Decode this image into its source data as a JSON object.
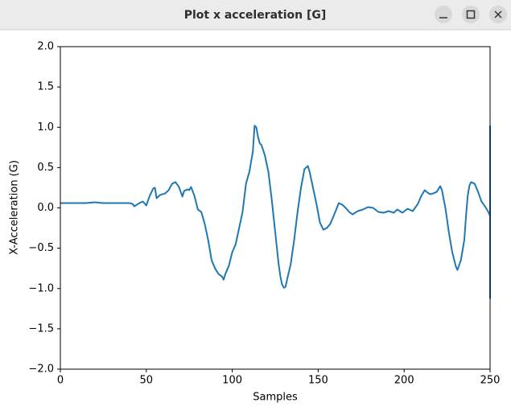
{
  "window": {
    "title": "Plot x acceleration [G]"
  },
  "chart_data": {
    "type": "line",
    "xlabel": "Samples",
    "ylabel": "X-Acceleration (G)",
    "color": "#1f77b4",
    "x": [
      0,
      5,
      10,
      15,
      20,
      25,
      30,
      35,
      40,
      42,
      43,
      46,
      48,
      50,
      52,
      54,
      55,
      56,
      58,
      61,
      63,
      65,
      67,
      69,
      71,
      72,
      74,
      75,
      76,
      78,
      80,
      82,
      84,
      86,
      88,
      90,
      92,
      94,
      95,
      96,
      98,
      100,
      102,
      104,
      106,
      108,
      110,
      112,
      113,
      114,
      115,
      116,
      117,
      119,
      121,
      123,
      125,
      127,
      128,
      129,
      130,
      131,
      132,
      134,
      136,
      138,
      140,
      142,
      143,
      144,
      145,
      147,
      149,
      151,
      153,
      155,
      157,
      159,
      162,
      164,
      166,
      168,
      170,
      173,
      176,
      179,
      182,
      185,
      188,
      191,
      194,
      196,
      199,
      202,
      205,
      208,
      210,
      212,
      213,
      215,
      217,
      219,
      221,
      222,
      224,
      226,
      228,
      230,
      231,
      233,
      235,
      236,
      237,
      238,
      239,
      241,
      243,
      245,
      247,
      249,
      250,
      250,
      250
    ],
    "values": [
      0.06,
      0.06,
      0.06,
      0.06,
      0.07,
      0.06,
      0.06,
      0.06,
      0.06,
      0.05,
      0.02,
      0.06,
      0.08,
      0.03,
      0.15,
      0.24,
      0.25,
      0.12,
      0.16,
      0.18,
      0.22,
      0.3,
      0.32,
      0.26,
      0.14,
      0.21,
      0.23,
      0.22,
      0.26,
      0.15,
      -0.02,
      -0.05,
      -0.2,
      -0.4,
      -0.65,
      -0.75,
      -0.82,
      -0.85,
      -0.89,
      -0.82,
      -0.72,
      -0.55,
      -0.45,
      -0.25,
      -0.05,
      0.3,
      0.45,
      0.7,
      1.02,
      1.0,
      0.88,
      0.8,
      0.78,
      0.65,
      0.45,
      0.1,
      -0.3,
      -0.7,
      -0.85,
      -0.95,
      -0.99,
      -0.98,
      -0.88,
      -0.7,
      -0.4,
      -0.05,
      0.25,
      0.48,
      0.5,
      0.52,
      0.45,
      0.25,
      0.05,
      -0.18,
      -0.27,
      -0.25,
      -0.2,
      -0.1,
      0.06,
      0.04,
      0.0,
      -0.05,
      -0.08,
      -0.04,
      -0.02,
      0.01,
      0.0,
      -0.05,
      -0.06,
      -0.04,
      -0.06,
      -0.02,
      -0.06,
      -0.01,
      -0.04,
      0.05,
      0.15,
      0.22,
      0.2,
      0.17,
      0.18,
      0.2,
      0.27,
      0.22,
      0.0,
      -0.3,
      -0.55,
      -0.72,
      -0.77,
      -0.65,
      -0.4,
      -0.1,
      0.15,
      0.28,
      0.32,
      0.3,
      0.2,
      0.08,
      0.02,
      -0.05,
      -0.1,
      -1.12,
      1.02
    ],
    "xlim": [
      0,
      250
    ],
    "xticks": [
      0,
      50,
      100,
      150,
      200,
      250
    ],
    "ylim": [
      -2,
      2
    ],
    "yticks": [
      {
        "value": -2,
        "label": "−2.0"
      },
      {
        "value": -1.5,
        "label": "−1.5"
      },
      {
        "value": -1,
        "label": "−1.0"
      },
      {
        "value": -0.5,
        "label": "−0.5"
      },
      {
        "value": 0,
        "label": "0.0"
      },
      {
        "value": 0.5,
        "label": "0.5"
      },
      {
        "value": 1,
        "label": "1.0"
      },
      {
        "value": 1.5,
        "label": "1.5"
      },
      {
        "value": 2,
        "label": "2.0"
      }
    ]
  }
}
